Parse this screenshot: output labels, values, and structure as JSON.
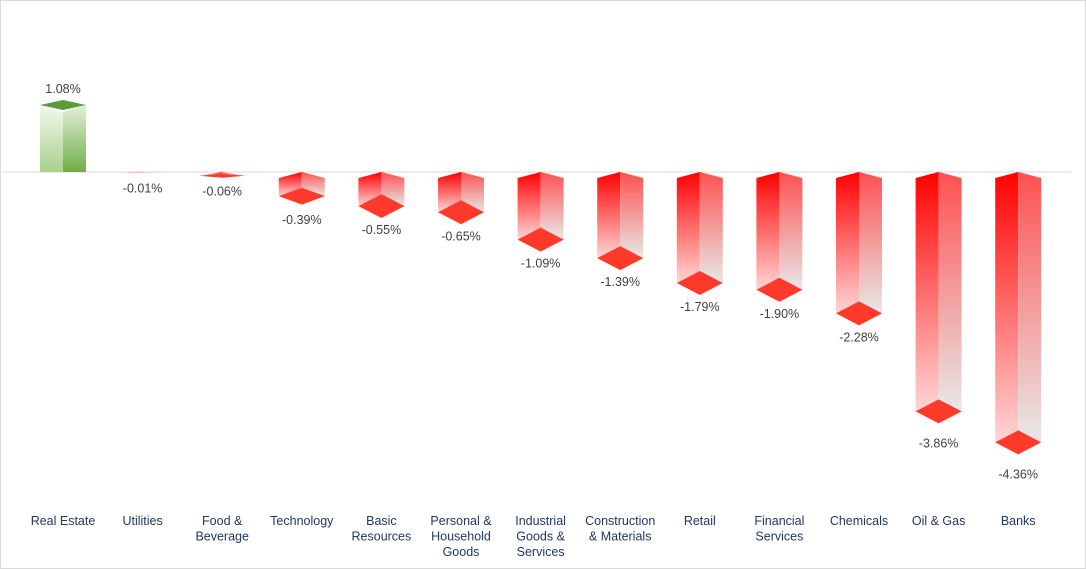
{
  "chart_data": {
    "type": "bar",
    "title": "",
    "xlabel": "",
    "ylabel": "",
    "categories": [
      [
        "Real Estate"
      ],
      [
        "Utilities"
      ],
      [
        "Food &",
        "Beverage"
      ],
      [
        "Technology"
      ],
      [
        "Basic",
        "Resources"
      ],
      [
        "Personal &",
        "Household",
        "Goods"
      ],
      [
        "Industrial",
        "Goods &",
        "Services"
      ],
      [
        "Construction",
        "& Materials"
      ],
      [
        "Retail"
      ],
      [
        "Financial",
        "Services"
      ],
      [
        "Chemicals"
      ],
      [
        "Oil & Gas"
      ],
      [
        "Banks"
      ]
    ],
    "values": [
      1.08,
      -0.01,
      -0.06,
      -0.39,
      -0.55,
      -0.65,
      -1.09,
      -1.39,
      -1.79,
      -1.9,
      -2.28,
      -3.86,
      -4.36
    ],
    "labels": [
      "1.08%",
      "-0.01%",
      "-0.06%",
      "-0.39%",
      "-0.55%",
      "-0.65%",
      "-1.09%",
      "-1.39%",
      "-1.79%",
      "-1.90%",
      "-2.28%",
      "-3.86%",
      "-4.36%"
    ],
    "unit": "%",
    "grid": false,
    "legend": "none",
    "colors": {
      "positive": "#70ad47",
      "negative": "#ff0000",
      "zero_line": "#d9d9d9"
    }
  }
}
